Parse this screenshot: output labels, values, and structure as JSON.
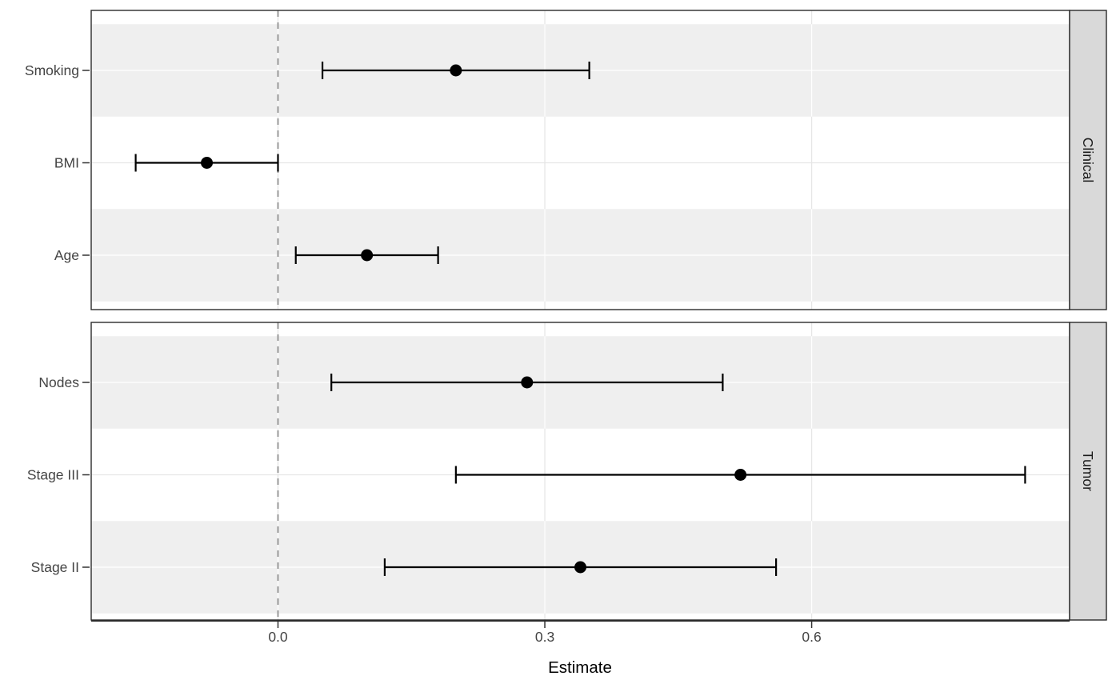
{
  "chart_data": {
    "type": "scatter",
    "variant": "forest-coefficient-plot",
    "title": "",
    "xlabel": "Estimate",
    "ylabel": "",
    "xlim": [
      -0.21,
      0.89
    ],
    "grid": "major",
    "legend_position": "none",
    "reference_line": {
      "x": 0.0,
      "style": "dashed"
    },
    "x_ticks": [
      {
        "value": 0.0,
        "label": "0.0"
      },
      {
        "value": 0.3,
        "label": "0.3"
      },
      {
        "value": 0.6,
        "label": "0.6"
      }
    ],
    "facets": [
      {
        "strip": "Clinical",
        "rows": [
          {
            "label": "Smoking",
            "estimate": 0.2,
            "ci_low": 0.05,
            "ci_high": 0.35
          },
          {
            "label": "BMI",
            "estimate": -0.08,
            "ci_low": -0.16,
            "ci_high": 0.0
          },
          {
            "label": "Age",
            "estimate": 0.1,
            "ci_low": 0.02,
            "ci_high": 0.18
          }
        ]
      },
      {
        "strip": "Tumor",
        "rows": [
          {
            "label": "Nodes",
            "estimate": 0.28,
            "ci_low": 0.06,
            "ci_high": 0.5
          },
          {
            "label": "Stage III",
            "estimate": 0.52,
            "ci_low": 0.2,
            "ci_high": 0.84
          },
          {
            "label": "Stage II",
            "estimate": 0.34,
            "ci_low": 0.12,
            "ci_high": 0.56
          }
        ]
      }
    ],
    "colors": {
      "background": "#FFFFFF",
      "band_fill": "#EFEFEF",
      "grid_on_white": "#E6E6E6",
      "grid_on_band": "#FFFFFF",
      "reference_line": "#999999",
      "marks": "#000000",
      "panel_border": "#2B2B2B",
      "axis_line": "#2B2B2B",
      "tick_mark": "#333333",
      "axis_text": "#444444",
      "axis_title": "#000000",
      "strip_fill": "#D9D9D9",
      "strip_border": "#2B2B2B",
      "strip_text": "#1A1A1A"
    }
  }
}
